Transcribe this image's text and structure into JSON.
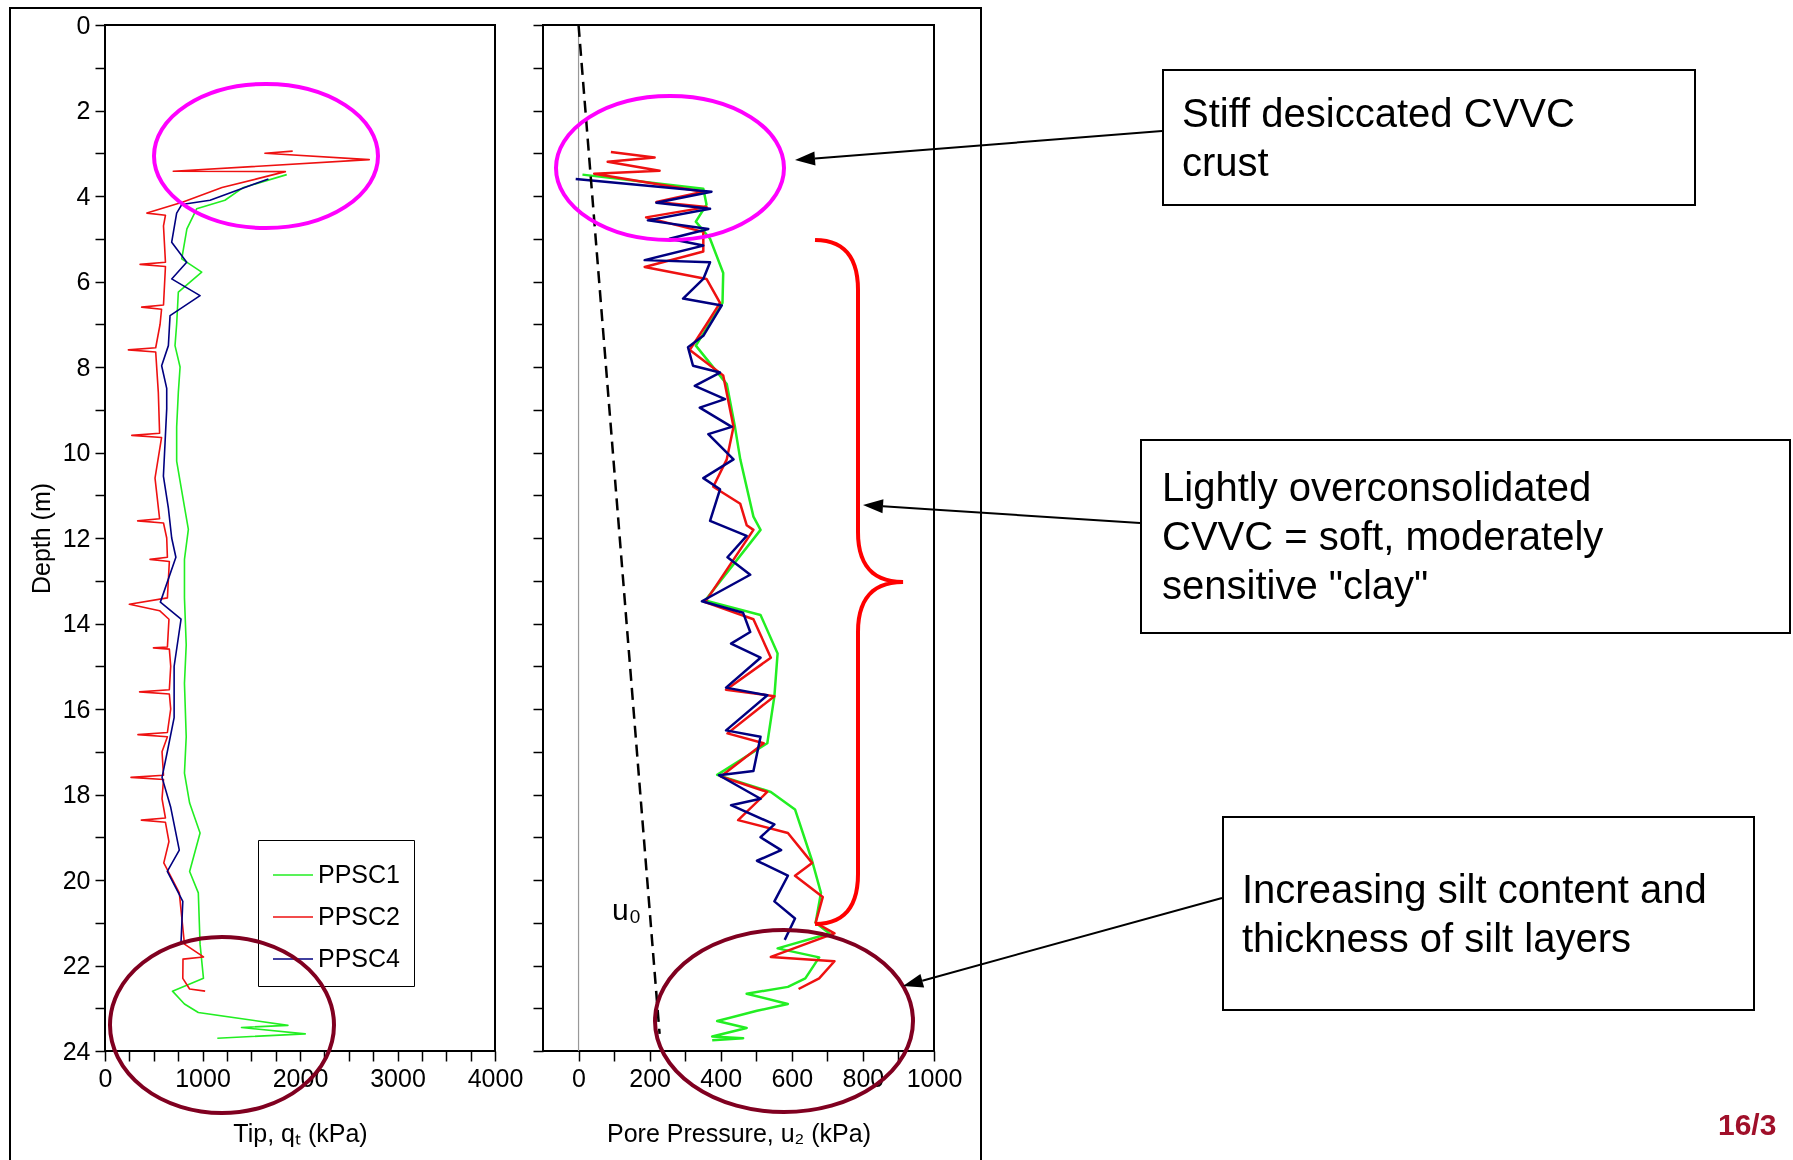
{
  "chart_data": [
    {
      "type": "line",
      "xlabel": "Tip, qₜ (kPa)",
      "ylabel": "Depth (m)",
      "xlim": [
        0,
        4000
      ],
      "ylim": [
        24,
        0
      ],
      "xticks": [
        0,
        {
          "value": 250,
          "label": null
        },
        {
          "value": 500,
          "label": null
        },
        {
          "value": 750,
          "label": null
        },
        1000,
        {
          "value": 1250,
          "label": null
        },
        {
          "value": 1500,
          "label": null
        },
        {
          "value": 1750,
          "label": null
        },
        2000,
        {
          "value": 2250,
          "label": null
        },
        {
          "value": 2500,
          "label": null
        },
        {
          "value": 2750,
          "label": null
        },
        3000,
        {
          "value": 3250,
          "label": null
        },
        {
          "value": 3500,
          "label": null
        },
        {
          "value": 3750,
          "label": null
        },
        4000
      ],
      "yticks": [
        0,
        {
          "value": 1,
          "label": null
        },
        2,
        {
          "value": 3,
          "label": null
        },
        4,
        {
          "value": 5,
          "label": null
        },
        6,
        {
          "value": 7,
          "label": null
        },
        8,
        {
          "value": 9,
          "label": null
        },
        10,
        {
          "value": 11,
          "label": null
        },
        12,
        {
          "value": 13,
          "label": null
        },
        14,
        {
          "value": 15,
          "label": null
        },
        16,
        {
          "value": 17,
          "label": null
        },
        18,
        {
          "value": 19,
          "label": null
        },
        20,
        {
          "value": 21,
          "label": null
        },
        22,
        {
          "value": 23,
          "label": null
        },
        24
      ],
      "legend": "bottom right",
      "series": [
        {
          "name": "PPSC1",
          "color": "#22ee22",
          "x": [
            1864,
            1420,
            1230,
            940,
            840,
            787,
            992,
            752,
            735,
            718,
            770,
            752,
            735,
            735,
            787,
            855,
            815,
            815,
            833,
            815,
            833,
            815,
            868,
            975,
            868,
            957,
            975,
            1010,
            692,
            815,
            957,
            1876,
            1400,
            2054,
            1152
          ],
          "values": [
            3.5,
            3.8,
            4.1,
            4.3,
            4.77,
            5.47,
            5.78,
            6.25,
            7.0,
            7.5,
            8.0,
            8.6,
            9.4,
            10.2,
            10.9,
            11.8,
            12.5,
            13.4,
            14.5,
            15.4,
            16.65,
            17.5,
            18.2,
            18.9,
            19.8,
            20.3,
            21.5,
            22.3,
            22.6,
            22.9,
            23.1,
            23.4,
            23.45,
            23.6,
            23.7
          ]
        },
        {
          "name": "PPSC2",
          "color": "#ee1111",
          "x": [
            1925,
            1640,
            2710,
            700,
            1850,
            1556,
            1200,
            800,
            430,
            620,
            600,
            620,
            360,
            620,
            600,
            376,
            580,
            565,
            520,
            240,
            520,
            547,
            560,
            275,
            580,
            513,
            560,
            335,
            600,
            633,
            640,
            462,
            660,
            640,
            250,
            560,
            656,
            640,
            497,
            660,
            674,
            660,
            355,
            660,
            674,
            640,
            338,
            640,
            585,
            600,
            267,
            600,
            585,
            620,
            373,
            620,
            656,
            603,
            762,
            815,
            1010,
            800,
            798,
            868,
            1027
          ],
          "values": [
            2.95,
            3.0,
            3.15,
            3.42,
            3.43,
            3.6,
            3.8,
            4.14,
            4.4,
            4.45,
            4.7,
            5.55,
            5.6,
            5.65,
            6.55,
            6.6,
            6.65,
            7.0,
            7.55,
            7.6,
            7.65,
            8.6,
            9.55,
            9.6,
            9.65,
            10.6,
            11.55,
            11.6,
            11.65,
            12.0,
            12.45,
            12.5,
            12.55,
            13.4,
            13.55,
            13.7,
            13.9,
            14.55,
            14.57,
            14.6,
            15.0,
            15.55,
            15.6,
            15.65,
            16.0,
            16.55,
            16.6,
            16.65,
            17.0,
            17.55,
            17.6,
            17.65,
            18.1,
            18.55,
            18.6,
            18.65,
            19.1,
            19.6,
            20.3,
            21.5,
            21.8,
            21.85,
            22.3,
            22.55,
            22.6
          ]
        },
        {
          "name": "PPSC4",
          "color": "#000080",
          "x": [
            1676,
            1077,
            787,
            735,
            684,
            838,
            684,
            975,
            667,
            650,
            581,
            633,
            633,
            616,
            599,
            650,
            684,
            727,
            568,
            780,
            709,
            709,
            639,
            585,
            674,
            762,
            639,
            798,
            780
          ],
          "values": [
            3.6,
            4.1,
            4.2,
            4.4,
            5.08,
            5.55,
            5.94,
            6.33,
            6.8,
            7.5,
            7.97,
            8.5,
            8.98,
            9.77,
            10.55,
            11.3,
            12.0,
            12.45,
            13.5,
            13.9,
            15.0,
            16.2,
            17.0,
            17.6,
            18.3,
            19.3,
            19.8,
            20.5,
            21.45
          ]
        }
      ]
    },
    {
      "type": "line",
      "xlabel": "Pore Pressure, u₂ (kPa)",
      "xlim": [
        -100,
        1000
      ],
      "ylim": [
        24,
        0
      ],
      "tick_labels": "x",
      "xticks": [
        0,
        {
          "value": 100,
          "label": null
        },
        200,
        {
          "value": 300,
          "label": null
        },
        400,
        {
          "value": 500,
          "label": null
        },
        600,
        {
          "value": 700,
          "label": null
        },
        800,
        {
          "value": 900,
          "label": null
        },
        1000
      ],
      "yticks": [
        {
          "value": 0,
          "label": null
        },
        {
          "value": 1,
          "label": null
        },
        {
          "value": 2,
          "label": null
        },
        {
          "value": 3,
          "label": null
        },
        {
          "value": 4,
          "label": null
        },
        {
          "value": 5,
          "label": null
        },
        {
          "value": 6,
          "label": null
        },
        {
          "value": 7,
          "label": null
        },
        {
          "value": 8,
          "label": null
        },
        {
          "value": 9,
          "label": null
        },
        {
          "value": 10,
          "label": null
        },
        {
          "value": 11,
          "label": null
        },
        {
          "value": 12,
          "label": null
        },
        {
          "value": 13,
          "label": null
        },
        {
          "value": 14,
          "label": null
        },
        {
          "value": 15,
          "label": null
        },
        {
          "value": 16,
          "label": null
        },
        {
          "value": 17,
          "label": null
        },
        {
          "value": 18,
          "label": null
        },
        {
          "value": 19,
          "label": null
        },
        {
          "value": 20,
          "label": null
        },
        {
          "value": 21,
          "label": null
        },
        {
          "value": 22,
          "label": null
        },
        {
          "value": 23,
          "label": null
        },
        {
          "value": 24,
          "label": null
        }
      ],
      "ref_lines": [
        {
          "axis": "x",
          "value": 0,
          "color": "#999999"
        }
      ],
      "series": [
        {
          "color": "#22ee22",
          "x": [
            11,
            351,
            360,
            330,
            370,
            407,
            405,
            330,
            417,
            440,
            455,
            492,
            512,
            356,
            512,
            560,
            551,
            531,
            390,
            541,
            609,
            657,
            682,
            667,
            706,
            560,
            677,
            638,
            589,
            473,
            589,
            502,
            390,
            473,
            376,
            463,
            376
          ],
          "values": [
            3.5,
            3.83,
            4.2,
            4.6,
            5.0,
            5.8,
            6.5,
            7.5,
            8.4,
            9.4,
            10.16,
            11.5,
            11.81,
            13.46,
            13.8,
            14.7,
            15.7,
            16.8,
            17.54,
            17.94,
            18.35,
            19.55,
            20.3,
            21.0,
            21.25,
            21.6,
            21.81,
            22.3,
            22.5,
            22.66,
            22.9,
            23.06,
            23.3,
            23.46,
            23.66,
            23.7,
            23.75
          ]
        },
        {
          "color": "#ee1111",
          "x": [
            91,
            214,
            82,
            228,
            44,
            351,
            219,
            360,
            190,
            351,
            351,
            186,
            360,
            398,
            360,
            313,
            407,
            436,
            417,
            379,
            455,
            473,
            492,
            356,
            492,
            541,
            415,
            551,
            419,
            521,
            400,
            531,
            449,
            589,
            657,
            609,
            687,
            667,
            720,
            541,
            720,
            677,
            619
          ],
          "values": [
            2.97,
            3.1,
            3.2,
            3.41,
            3.48,
            3.9,
            4.14,
            4.26,
            4.5,
            4.84,
            5.3,
            5.66,
            5.94,
            6.5,
            7.0,
            7.6,
            8.2,
            9.4,
            10.16,
            10.8,
            11.2,
            11.7,
            11.81,
            13.5,
            13.9,
            14.8,
            15.55,
            15.7,
            16.57,
            16.8,
            17.58,
            17.94,
            18.6,
            18.9,
            19.6,
            19.9,
            20.4,
            21.0,
            21.25,
            21.8,
            21.9,
            22.3,
            22.55
          ]
        },
        {
          "color": "#000080",
          "x": [
            -8,
            374,
            219,
            370,
            195,
            365,
            256,
            351,
            186,
            370,
            351,
            294,
            403,
            351,
            308,
            322,
            398,
            327,
            412,
            341,
            431,
            365,
            436,
            351,
            398,
            370,
            473,
            419,
            483,
            347,
            463,
            483,
            429,
            512,
            415,
            531,
            415,
            512,
            492,
            395,
            512,
            429,
            551,
            512,
            570,
            502,
            589,
            551,
            609,
            580
          ],
          "values": [
            3.6,
            3.9,
            4.16,
            4.3,
            4.57,
            4.77,
            5.0,
            5.16,
            5.5,
            5.55,
            5.94,
            6.4,
            6.56,
            7.27,
            7.54,
            7.97,
            8.13,
            8.44,
            8.75,
            8.95,
            9.4,
            9.57,
            10.16,
            10.6,
            10.86,
            11.6,
            11.95,
            12.45,
            12.86,
            13.48,
            13.75,
            14.2,
            14.47,
            14.8,
            15.5,
            15.68,
            16.5,
            16.65,
            17.45,
            17.55,
            18.1,
            18.25,
            18.7,
            19.0,
            19.3,
            19.55,
            19.9,
            20.5,
            20.9,
            21.4
          ]
        },
        {
          "color": "#000000",
          "line_style": "dashed",
          "x": [
            0,
            228
          ],
          "values": [
            0,
            23.6
          ]
        }
      ],
      "annotations": [
        "u₀",
        "Stiff desiccated CVVC crust",
        "Lightly overconsolidated CVVC = soft, moderately sensitive \"clay\"",
        "Increasing silt content and thickness of silt layers",
        "16/3"
      ]
    }
  ]
}
